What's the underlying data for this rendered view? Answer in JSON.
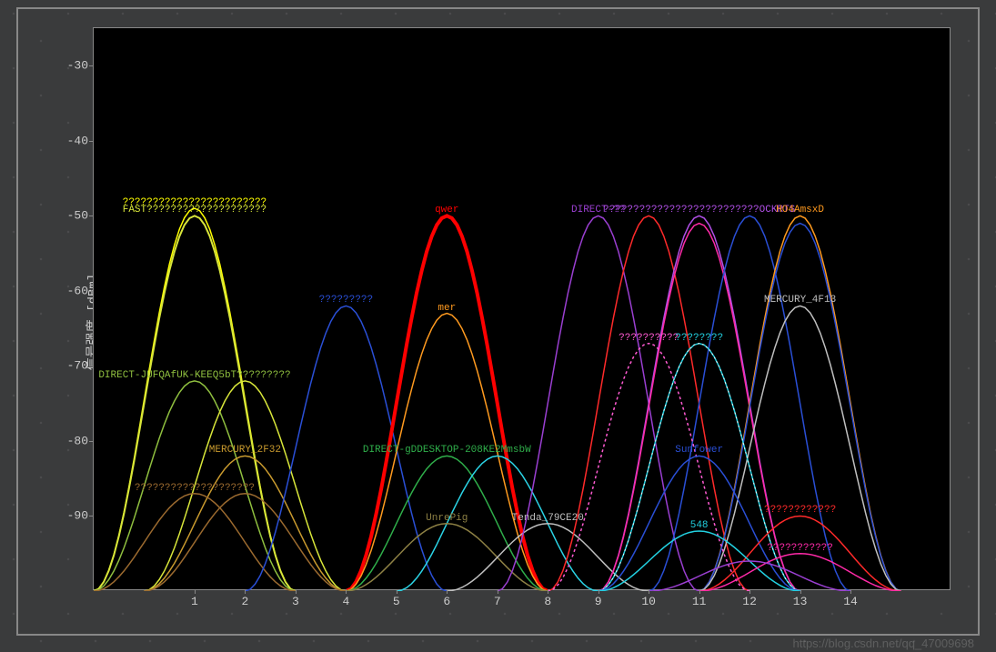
{
  "chart": {
    "type": "wifi-channel-spectrum",
    "background_color": "#000000",
    "frame_color": "#888888",
    "page_background": "#3a3b3c",
    "ylabel": "信号强度 [dBm]",
    "label_fontsize": 14,
    "tick_fontsize": 13,
    "tick_color": "#cccccc",
    "xlim": [
      -1,
      16
    ],
    "ylim": [
      -100,
      -25
    ],
    "yticks": [
      -30,
      -40,
      -50,
      -60,
      -70,
      -80,
      -90
    ],
    "xticks": [
      1,
      2,
      3,
      4,
      5,
      6,
      7,
      8,
      9,
      10,
      11,
      12,
      13,
      14
    ],
    "networks": [
      {
        "name": "????????????????????????",
        "channel": 1,
        "peak": -49,
        "color": "#ffff00",
        "width": 2,
        "line_width": 1.5
      },
      {
        "name": "FAST????????????????????",
        "channel": 1,
        "peak": -50,
        "color": "#d8e63a",
        "width": 2,
        "line_width": 2
      },
      {
        "name": "DIRECT-JUFQAfUK-KEEQ5bT?????????",
        "channel": 1,
        "peak": -72,
        "color": "#8fbf3f",
        "width": 2,
        "line_width": 1.5
      },
      {
        "name": "",
        "channel": 2,
        "peak": -72,
        "color": "#d8e63a",
        "width": 2,
        "line_width": 1.5
      },
      {
        "name": "MERCURY_2F32",
        "channel": 2,
        "peak": -82,
        "color": "#c99a2e",
        "width": 2,
        "line_width": 1.5
      },
      {
        "name": "????????????????????",
        "channel": 1,
        "peak": -87,
        "color": "#9b6a2f",
        "width": 2,
        "line_width": 1.5
      },
      {
        "name": "",
        "channel": 2,
        "peak": -87,
        "color": "#9b6a2f",
        "width": 2,
        "line_width": 1.5
      },
      {
        "name": "?????????",
        "channel": 4,
        "peak": -62,
        "color": "#2a4fd6",
        "width": 2,
        "line_width": 1.5
      },
      {
        "name": "qwer",
        "channel": 6,
        "peak": -50,
        "color": "#ff0000",
        "width": 2,
        "line_width": 4
      },
      {
        "name": "mer",
        "channel": 6,
        "peak": -63,
        "color": "#ff9a1f",
        "width": 2,
        "line_width": 1.5
      },
      {
        "name": "DIRECT-gDDESKTOP-208KE2MmsbW",
        "channel": 6,
        "peak": -82,
        "color": "#2fae4a",
        "width": 2,
        "line_width": 1.5
      },
      {
        "name": "",
        "channel": 7,
        "peak": -82,
        "color": "#2bd4e6",
        "width": 2,
        "line_width": 1.5
      },
      {
        "name": "UnrePig",
        "channel": 6,
        "peak": -91,
        "color": "#8d8044",
        "width": 2,
        "line_width": 1.5
      },
      {
        "name": "Tenda_79CE20",
        "channel": 8,
        "peak": -91,
        "color": "#bfbfbf",
        "width": 2,
        "line_width": 1.5
      },
      {
        "name": "DIRECT-??",
        "channel": 9,
        "peak": -50,
        "color": "#9a3fd1",
        "width": 2,
        "line_width": 1.5
      },
      {
        "name": "",
        "channel": 10,
        "peak": -50,
        "color": "#ff2a2a",
        "width": 2,
        "line_width": 1.5
      },
      {
        "name": "??????????????????????????OCKRTS",
        "channel": 11,
        "peak": -50,
        "color": "#b04fe6",
        "width": 2,
        "line_width": 1.5
      },
      {
        "name": "",
        "channel": 11,
        "peak": -51,
        "color": "#ff2aa8",
        "width": 2,
        "line_width": 1.5
      },
      {
        "name": "",
        "channel": 12,
        "peak": -50,
        "color": "#2a4fd6",
        "width": 2,
        "line_width": 1.5
      },
      {
        "name": "HO4AmsxD",
        "channel": 13,
        "peak": -50,
        "color": "#ff9a1f",
        "width": 2,
        "line_width": 1.5
      },
      {
        "name": "",
        "channel": 13,
        "peak": -51,
        "color": "#2a4fd6",
        "width": 2,
        "line_width": 1.5
      },
      {
        "name": "MERCURY_4F13",
        "channel": 13,
        "peak": -62,
        "color": "#bfbfbf",
        "width": 2,
        "line_width": 1.5
      },
      {
        "name": "??????????",
        "channel": 10,
        "peak": -67,
        "color": "#ff5ad1",
        "width": 2,
        "line_width": 1.5,
        "dash": "3,3"
      },
      {
        "name": "????????",
        "channel": 11,
        "peak": -67,
        "color": "#22d0e0",
        "width": 2,
        "line_width": 1.5
      },
      {
        "name": "",
        "channel": 11,
        "peak": -67,
        "color": "#f7f7f7",
        "width": 2,
        "line_width": 1,
        "dash": "2,3"
      },
      {
        "name": "Sunfower",
        "channel": 11,
        "peak": -82,
        "color": "#2a4fd6",
        "width": 2,
        "line_width": 1.5
      },
      {
        "name": "????????????",
        "channel": 13,
        "peak": -90,
        "color": "#ff2a2a",
        "width": 2,
        "line_width": 1.5
      },
      {
        "name": "548",
        "channel": 11,
        "peak": -92,
        "color": "#22d0e0",
        "width": 2,
        "line_width": 1.5
      },
      {
        "name": "???????????",
        "channel": 13,
        "peak": -95,
        "color": "#ff2aa8",
        "width": 2,
        "line_width": 1.5
      },
      {
        "name": "",
        "channel": 12,
        "peak": -96,
        "color": "#9a3fd1",
        "width": 2,
        "line_width": 1.5
      }
    ]
  },
  "watermark": "https://blog.csdn.net/qq_47009698"
}
